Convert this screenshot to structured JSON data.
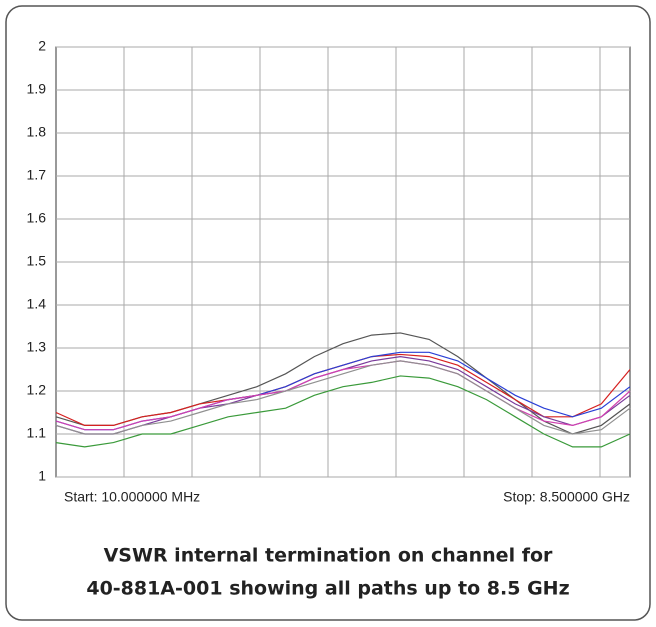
{
  "chart_data": {
    "type": "line",
    "start_label": "Start: 10.000000 MHz",
    "stop_label": "Stop: 8.500000 GHz",
    "caption": [
      "VSWR internal termination on channel for",
      "40-881A-001 showing all paths up to 8.5 GHz"
    ],
    "categories": [
      null,
      null,
      null,
      null,
      null,
      null,
      null,
      null,
      null,
      null,
      null,
      null,
      null,
      null,
      null,
      null,
      null,
      null,
      null,
      null,
      null
    ],
    "ylim": [
      1,
      2
    ],
    "yticks": [
      1,
      1.1,
      1.2,
      1.3,
      1.4,
      1.5,
      1.6,
      1.7,
      1.8,
      1.9,
      2
    ],
    "grid": true,
    "series": [
      {
        "color": "#555555",
        "values": [
          1.14,
          1.12,
          1.12,
          1.14,
          1.15,
          1.17,
          1.19,
          1.21,
          1.24,
          1.28,
          1.31,
          1.33,
          1.335,
          1.32,
          1.28,
          1.23,
          1.18,
          1.13,
          1.1,
          1.12,
          1.17
        ]
      },
      {
        "color": "#d62020",
        "values": [
          1.15,
          1.12,
          1.12,
          1.14,
          1.15,
          1.17,
          1.18,
          1.19,
          1.21,
          1.24,
          1.26,
          1.28,
          1.285,
          1.28,
          1.26,
          1.22,
          1.18,
          1.14,
          1.14,
          1.17,
          1.25
        ]
      },
      {
        "color": "#2a3fd6",
        "values": [
          1.13,
          1.11,
          1.11,
          1.13,
          1.14,
          1.16,
          1.18,
          1.19,
          1.21,
          1.24,
          1.26,
          1.28,
          1.29,
          1.29,
          1.27,
          1.23,
          1.19,
          1.16,
          1.14,
          1.16,
          1.21
        ]
      },
      {
        "color": "#7a3a9a",
        "values": [
          1.12,
          1.1,
          1.1,
          1.12,
          1.14,
          1.16,
          1.17,
          1.19,
          1.2,
          1.23,
          1.25,
          1.27,
          1.28,
          1.27,
          1.25,
          1.21,
          1.17,
          1.14,
          1.12,
          1.14,
          1.19
        ]
      },
      {
        "color": "#d040b0",
        "values": [
          1.13,
          1.11,
          1.11,
          1.13,
          1.14,
          1.16,
          1.18,
          1.19,
          1.2,
          1.23,
          1.25,
          1.26,
          1.27,
          1.26,
          1.24,
          1.2,
          1.16,
          1.13,
          1.12,
          1.14,
          1.2
        ]
      },
      {
        "color": "#909090",
        "values": [
          1.12,
          1.1,
          1.1,
          1.12,
          1.13,
          1.15,
          1.17,
          1.18,
          1.2,
          1.22,
          1.24,
          1.26,
          1.27,
          1.26,
          1.24,
          1.2,
          1.16,
          1.12,
          1.1,
          1.11,
          1.16
        ]
      },
      {
        "color": "#3a9a3a",
        "values": [
          1.08,
          1.07,
          1.08,
          1.1,
          1.1,
          1.12,
          1.14,
          1.15,
          1.16,
          1.19,
          1.21,
          1.22,
          1.235,
          1.23,
          1.21,
          1.18,
          1.14,
          1.1,
          1.07,
          1.07,
          1.1
        ]
      }
    ]
  }
}
